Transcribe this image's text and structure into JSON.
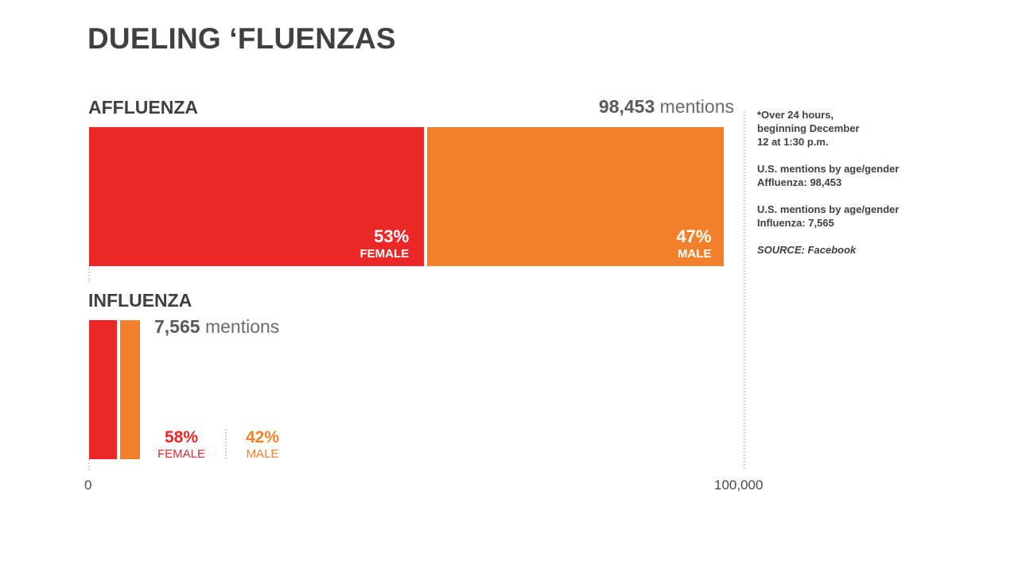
{
  "title": "DUELING ‘FLUENZAS",
  "colors": {
    "female": "#ec2727",
    "male": "#f3802a",
    "text_dark": "#404040",
    "text_gray": "#6b6b6b"
  },
  "affluenza": {
    "label": "AFFLUENZA",
    "count": "98,453",
    "mentions_word": "mentions",
    "female_pct": "53%",
    "female_label": "FEMALE",
    "male_pct": "47%",
    "male_label": "MALE"
  },
  "influenza": {
    "label": "INFLUENZA",
    "count": "7,565",
    "mentions_word": "mentions",
    "female_pct": "58%",
    "female_label": "FEMALE",
    "male_pct": "42%",
    "male_label": "MALE"
  },
  "axis": {
    "min_label": "0",
    "max_label": "100,000"
  },
  "notes": {
    "period_line1": "*Over 24 hours,",
    "period_line2": "beginning December",
    "period_line3": "12 at 1:30 p.m.",
    "aff_line1": "U.S. mentions by age/gender",
    "aff_line2": "Affluenza: 98,453",
    "inf_line1": "U.S. mentions by age/gender",
    "inf_line2": "Influenza: 7,565",
    "source": "SOURCE: Facebook"
  },
  "chart_data": {
    "type": "bar",
    "title": "DUELING ‘FLUENZAS",
    "xlim": [
      0,
      100000
    ],
    "categories": [
      "AFFLUENZA",
      "INFLUENZA"
    ],
    "totals": [
      98453,
      7565
    ],
    "series": [
      {
        "name": "FEMALE",
        "percent": [
          53,
          58
        ]
      },
      {
        "name": "MALE",
        "percent": [
          47,
          42
        ]
      }
    ],
    "tick_labels": [
      "0",
      "100,000"
    ],
    "grid": false
  }
}
